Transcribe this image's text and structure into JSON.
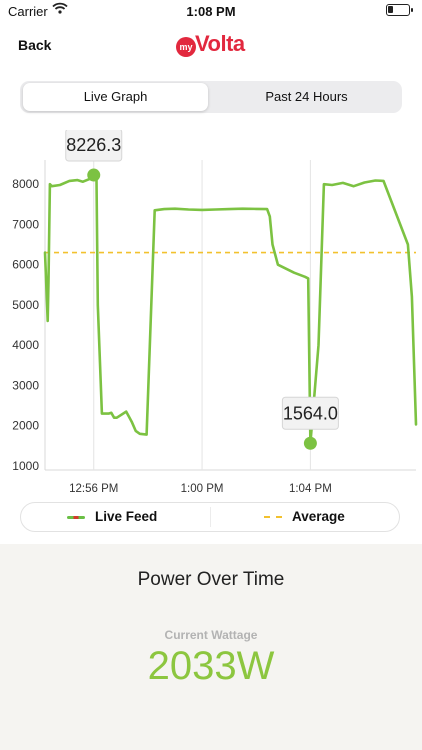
{
  "status_bar": {
    "carrier": "Carrier",
    "time": "1:08 PM"
  },
  "nav": {
    "back_label": "Back",
    "logo_prefix": "my",
    "logo_name": "Volta"
  },
  "tabs": [
    {
      "label": "Live Graph",
      "selected": true
    },
    {
      "label": "Past 24 Hours",
      "selected": false
    }
  ],
  "chart_data": {
    "type": "line",
    "ylim": [
      900,
      8600
    ],
    "y_ticks": [
      1000,
      2000,
      3000,
      4000,
      5000,
      6000,
      7000,
      8000
    ],
    "x_ticks": [
      "12:56 PM",
      "1:00 PM",
      "1:04 PM"
    ],
    "x_domain_minutes": [
      54.2,
      67.9
    ],
    "average": 6300,
    "series": [
      {
        "name": "Live Feed",
        "color": "#7cc242",
        "x": [
          54.2,
          54.3,
          54.33,
          54.38,
          54.45,
          54.75,
          55.1,
          55.4,
          55.6,
          55.85,
          56.0,
          56.1,
          56.15,
          56.3,
          56.55,
          56.65,
          56.75,
          56.85,
          57.2,
          57.4,
          57.55,
          57.7,
          57.95,
          58.25,
          58.6,
          59.0,
          59.5,
          60.0,
          60.5,
          61.0,
          61.5,
          62.0,
          62.4,
          62.5,
          62.6,
          62.8,
          63.1,
          63.4,
          63.8,
          63.92,
          64.0,
          64.3,
          64.5,
          64.8,
          65.2,
          65.6,
          66.0,
          66.4,
          66.7,
          67.6,
          67.75,
          67.9
        ],
        "y": [
          6300,
          4600,
          5600,
          8000,
          7950,
          7980,
          8080,
          8100,
          8060,
          8130,
          8140,
          8100,
          5000,
          2300,
          2300,
          2320,
          2200,
          2200,
          2350,
          2100,
          1870,
          1800,
          1780,
          7350,
          7380,
          7390,
          7370,
          7360,
          7370,
          7380,
          7390,
          7385,
          7380,
          7200,
          6500,
          6000,
          5900,
          5800,
          5700,
          5660,
          1564,
          4000,
          8000,
          7980,
          8030,
          7950,
          8040,
          8090,
          8080,
          6500,
          5200,
          2033
        ]
      }
    ],
    "annotations": [
      {
        "label": "8226.3",
        "x": 56.0,
        "y": 8226.3
      },
      {
        "label": "1564.0",
        "x": 64.0,
        "y": 1564.0
      }
    ]
  },
  "legend": {
    "live_label": "Live Feed",
    "average_label": "Average"
  },
  "summary": {
    "title": "Power Over Time",
    "wattage_label": "Current Wattage",
    "wattage_value": "2033W"
  },
  "colors": {
    "brand": "#e2283e",
    "line": "#7cc242",
    "average": "#f2c12e",
    "wattage": "#8cc63f"
  }
}
